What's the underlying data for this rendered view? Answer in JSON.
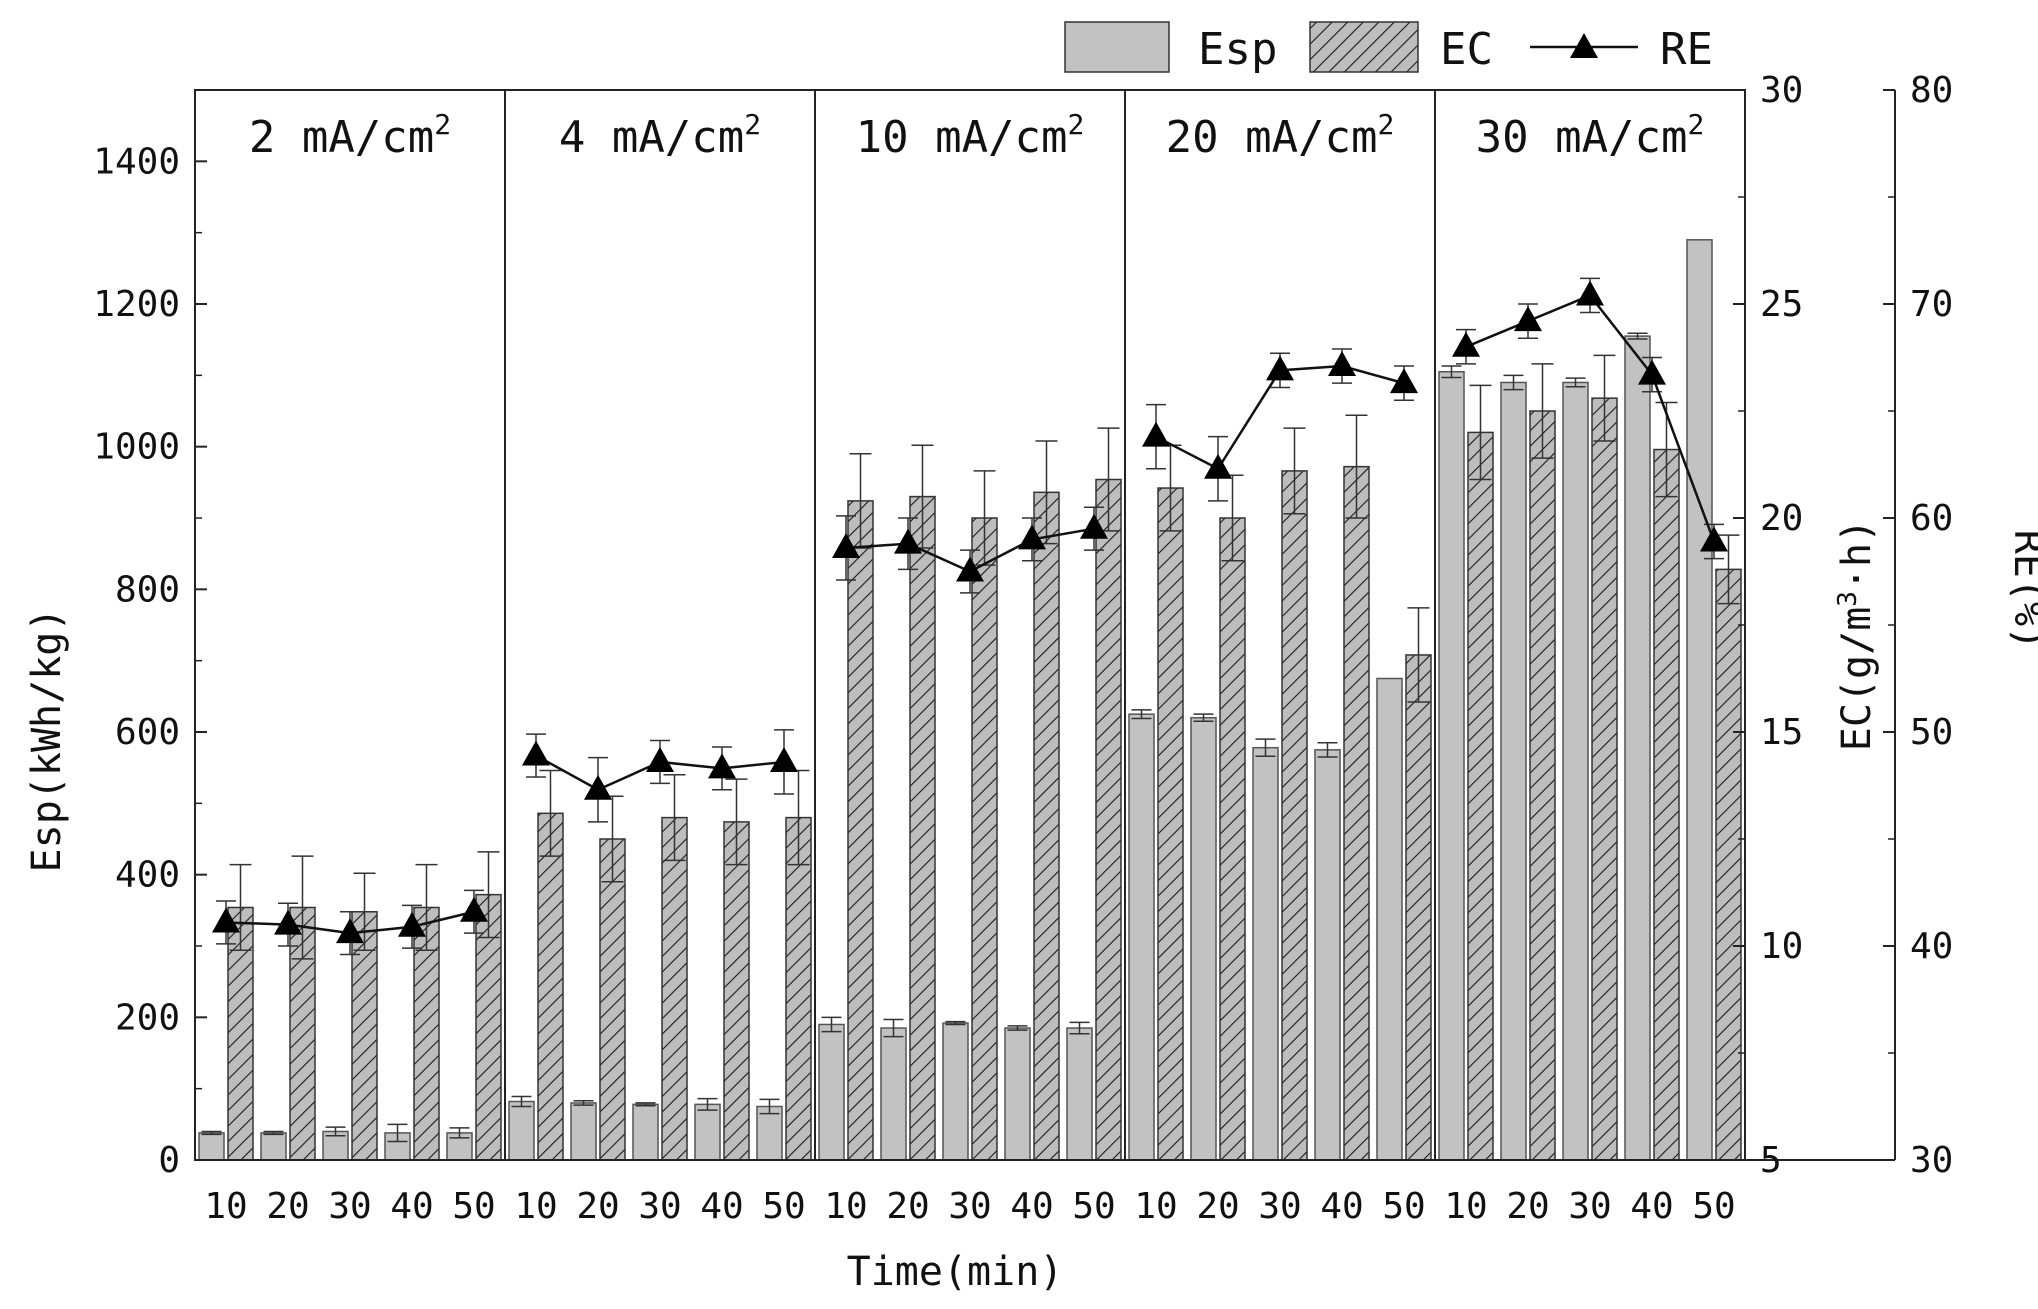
{
  "chart_data": {
    "type": "bar",
    "xlabel": "Time(min)",
    "categories": [
      "10",
      "20",
      "30",
      "40",
      "50"
    ],
    "groups": [
      "2 mA/cm²",
      "4 mA/cm²",
      "10 mA/cm²",
      "20 mA/cm²",
      "30 mA/cm²"
    ],
    "group_base": [
      "2 mA/cm",
      "4 mA/cm",
      "10 mA/cm",
      "20 mA/cm",
      "30 mA/cm"
    ],
    "group_sup": "2",
    "legend": {
      "esp": "Esp",
      "ec": "EC",
      "re": "RE",
      "position": "top-right"
    },
    "axes": {
      "left": {
        "label": "Esp(kWh/kg)",
        "ylim": [
          0,
          1500
        ],
        "ticks": [
          0,
          200,
          400,
          600,
          800,
          1000,
          1200,
          1400
        ]
      },
      "right1": {
        "label": "EC(g/m³·h)",
        "label_base": "EC(g/m",
        "label_sup": "3",
        "label_tail": "·h)",
        "ylim": [
          5,
          30
        ],
        "ticks": [
          5,
          10,
          15,
          20,
          25,
          30
        ]
      },
      "right2": {
        "label": "RE(%)",
        "ylim": [
          30,
          80
        ],
        "ticks": [
          30,
          40,
          50,
          60,
          70,
          80
        ]
      }
    },
    "series": [
      {
        "name": "Esp",
        "axis": "left",
        "kind": "bar",
        "values": [
          [
            38,
            38,
            40,
            38,
            38
          ],
          [
            82,
            80,
            78,
            78,
            75
          ],
          [
            190,
            185,
            192,
            185,
            185
          ],
          [
            625,
            620,
            578,
            575,
            675
          ],
          [
            1105,
            1090,
            1090,
            1155,
            1290
          ]
        ],
        "errors": [
          [
            2,
            2,
            6,
            12,
            7
          ],
          [
            7,
            3,
            2,
            8,
            10
          ],
          [
            10,
            12,
            2,
            3,
            8
          ],
          [
            6,
            5,
            12,
            10,
            0
          ],
          [
            8,
            10,
            6,
            4,
            0
          ]
        ]
      },
      {
        "name": "EC",
        "axis": "right1",
        "kind": "bar",
        "values": [
          [
            10.9,
            10.9,
            10.8,
            10.9,
            11.2
          ],
          [
            13.1,
            12.5,
            13.0,
            12.9,
            13.0
          ],
          [
            20.4,
            20.5,
            20.0,
            20.6,
            20.9
          ],
          [
            20.7,
            20.0,
            21.1,
            21.2,
            16.8
          ],
          [
            22.0,
            22.5,
            22.8,
            21.6,
            18.8
          ]
        ],
        "errors": [
          [
            1.0,
            1.2,
            0.9,
            1.0,
            1.0
          ],
          [
            1.0,
            1.0,
            1.0,
            1.0,
            1.1
          ],
          [
            1.1,
            1.2,
            1.1,
            1.2,
            1.2
          ],
          [
            1.0,
            1.0,
            1.0,
            1.2,
            1.1
          ],
          [
            1.1,
            1.1,
            1.0,
            1.1,
            0.8
          ]
        ]
      },
      {
        "name": "RE",
        "axis": "right2",
        "kind": "line",
        "marker": "triangle",
        "values": [
          [
            41.1,
            41.0,
            40.6,
            40.9,
            41.6
          ],
          [
            48.9,
            47.3,
            48.6,
            48.3,
            48.6
          ],
          [
            58.6,
            58.8,
            57.5,
            59.0,
            59.5
          ],
          [
            63.8,
            62.3,
            66.9,
            67.1,
            66.3
          ],
          [
            68.0,
            69.2,
            70.4,
            66.7,
            58.9
          ]
        ],
        "errors": [
          [
            1.0,
            1.0,
            1.0,
            1.0,
            1.0
          ],
          [
            1.0,
            1.5,
            1.0,
            1.0,
            1.5
          ],
          [
            1.5,
            1.2,
            1.0,
            1.0,
            1.0
          ],
          [
            1.5,
            1.5,
            0.8,
            0.8,
            0.8
          ],
          [
            0.8,
            0.8,
            0.8,
            0.8,
            0.8
          ]
        ]
      }
    ]
  }
}
